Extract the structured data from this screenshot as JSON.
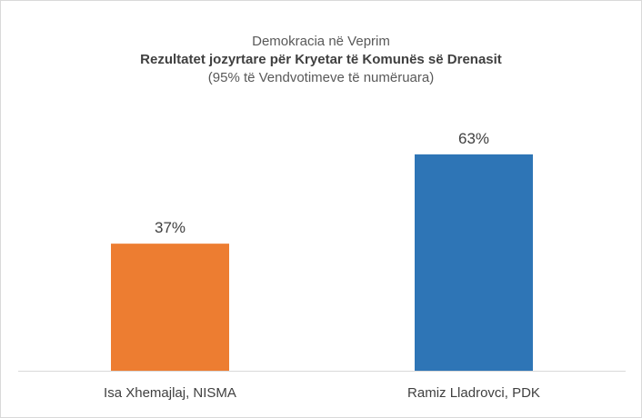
{
  "chart_data": {
    "type": "bar",
    "title": "Demokracia në Veprim",
    "subtitle": "Rezultatet jozyrtare për Kryetar të Komunës së Drenasit",
    "note": "(95% të Vendvotimeve të numëruara)",
    "categories": [
      "Isa Xhemajlaj, NISMA",
      "Ramiz Lladrovci, PDK"
    ],
    "values": [
      37,
      63
    ],
    "data_labels": [
      "37%",
      "63%"
    ],
    "colors": [
      "#ED7D31",
      "#2E75B6"
    ],
    "ylim": [
      0,
      100
    ],
    "grid": false,
    "legend": "none"
  }
}
